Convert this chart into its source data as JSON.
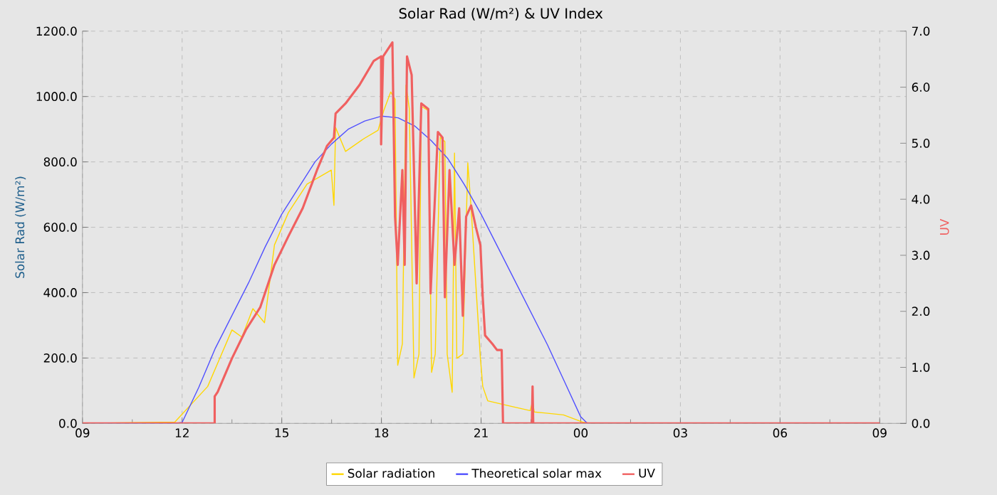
{
  "chart_data": {
    "type": "line",
    "title": "Solar Rad (W/m²) &  UV Index",
    "ylabel": "Solar Rad (W/m²)",
    "y2label": "UV",
    "xlim": [
      9,
      33.8
    ],
    "xticks": [
      {
        "value": 9,
        "label": "09"
      },
      {
        "value": 12,
        "label": "12"
      },
      {
        "value": 15,
        "label": "15"
      },
      {
        "value": 18,
        "label": "18"
      },
      {
        "value": 21,
        "label": "21"
      },
      {
        "value": 24,
        "label": "00"
      },
      {
        "value": 27,
        "label": "03"
      },
      {
        "value": 30,
        "label": "06"
      },
      {
        "value": 33,
        "label": "09"
      }
    ],
    "ylim": [
      0,
      1200
    ],
    "yticks": [
      {
        "value": 0,
        "label": "0.0"
      },
      {
        "value": 200,
        "label": "200.0"
      },
      {
        "value": 400,
        "label": "400.0"
      },
      {
        "value": 600,
        "label": "600.0"
      },
      {
        "value": 800,
        "label": "800.0"
      },
      {
        "value": 1000,
        "label": "1000.0"
      },
      {
        "value": 1200,
        "label": "1200.0"
      }
    ],
    "y2lim": [
      0,
      7
    ],
    "y2ticks": [
      {
        "value": 0,
        "label": "0.0"
      },
      {
        "value": 1,
        "label": "1.0"
      },
      {
        "value": 2,
        "label": "2.0"
      },
      {
        "value": 3,
        "label": "3.0"
      },
      {
        "value": 4,
        "label": "4.0"
      },
      {
        "value": 5,
        "label": "5.0"
      },
      {
        "value": 6,
        "label": "6.0"
      },
      {
        "value": 7,
        "label": "7.0"
      }
    ],
    "grid": true,
    "legend": "bottom",
    "series": [
      {
        "name": "Solar radiation",
        "color": "#ffd700",
        "x": [
          9,
          11.78,
          12.77,
          13.5,
          13.8,
          14.13,
          14.48,
          14.78,
          15.2,
          15.76,
          16.49,
          16.57,
          16.62,
          16.92,
          17.47,
          17.9,
          18.07,
          18.28,
          18.41,
          18.49,
          18.63,
          18.74,
          18.84,
          18.98,
          19.13,
          19.2,
          19.41,
          19.51,
          19.62,
          19.77,
          19.91,
          19.98,
          20.13,
          20.2,
          20.27,
          20.45,
          20.6,
          20.7,
          20.98,
          21.05,
          21.2,
          21.91,
          22.48,
          22.55,
          22.6,
          23.48,
          24.05,
          24.3,
          33
        ],
        "values": [
          0,
          4,
          113,
          286,
          264,
          351,
          308,
          546,
          645,
          732,
          775,
          667,
          905,
          832,
          871,
          897,
          957,
          1014,
          992,
          178,
          243,
          1035,
          962,
          139,
          212,
          970,
          957,
          156,
          212,
          875,
          862,
          212,
          95,
          827,
          199,
          212,
          797,
          658,
          199,
          113,
          69,
          52,
          39,
          69,
          35,
          26,
          4,
          0,
          0
        ]
      },
      {
        "name": "Theoretical solar max",
        "color": "#5050ff",
        "x": [
          9,
          11.8,
          12,
          12.5,
          13,
          13.5,
          14,
          14.5,
          15,
          15.5,
          16,
          16.5,
          17,
          17.5,
          18,
          18.5,
          19,
          19.5,
          20,
          20.5,
          21,
          21.5,
          22,
          22.5,
          23,
          23.5,
          24,
          24.2,
          33
        ],
        "values": [
          0,
          0,
          3,
          110,
          230,
          330,
          430,
          540,
          640,
          720,
          800,
          855,
          900,
          925,
          940,
          935,
          910,
          865,
          810,
          730,
          640,
          540,
          440,
          340,
          240,
          130,
          20,
          0,
          0
        ]
      },
      {
        "name": "UV",
        "color": "#f06060",
        "axis": "y2",
        "x": [
          9,
          12.98,
          12.98,
          13.07,
          13.5,
          13.92,
          14.35,
          14.78,
          15.2,
          15.63,
          16.06,
          16.36,
          16.57,
          16.62,
          16.92,
          17.34,
          17.77,
          17.99,
          17.99,
          18.05,
          18.33,
          18.41,
          18.49,
          18.63,
          18.7,
          18.77,
          18.91,
          18.98,
          19.06,
          19.2,
          19.41,
          19.48,
          19.7,
          19.84,
          19.91,
          20.05,
          20.2,
          20.34,
          20.45,
          20.55,
          20.7,
          20.84,
          20.98,
          21.05,
          21.12,
          21.34,
          21.48,
          21.62,
          21.66,
          22.53,
          22.55,
          22.57,
          33
        ],
        "values": [
          0,
          0,
          0.48,
          0.56,
          1.16,
          1.67,
          2.07,
          2.83,
          3.34,
          3.84,
          4.52,
          4.95,
          5.1,
          5.53,
          5.71,
          6.04,
          6.47,
          6.55,
          4.98,
          6.55,
          6.8,
          3.69,
          2.83,
          4.52,
          2.83,
          6.55,
          6.22,
          4.52,
          2.5,
          5.71,
          5.61,
          2.32,
          5.2,
          5.1,
          2.25,
          4.52,
          2.83,
          3.84,
          1.92,
          3.69,
          3.89,
          3.51,
          3.18,
          2.25,
          1.57,
          1.42,
          1.31,
          1.31,
          0,
          0,
          0.66,
          0,
          0
        ]
      }
    ]
  }
}
